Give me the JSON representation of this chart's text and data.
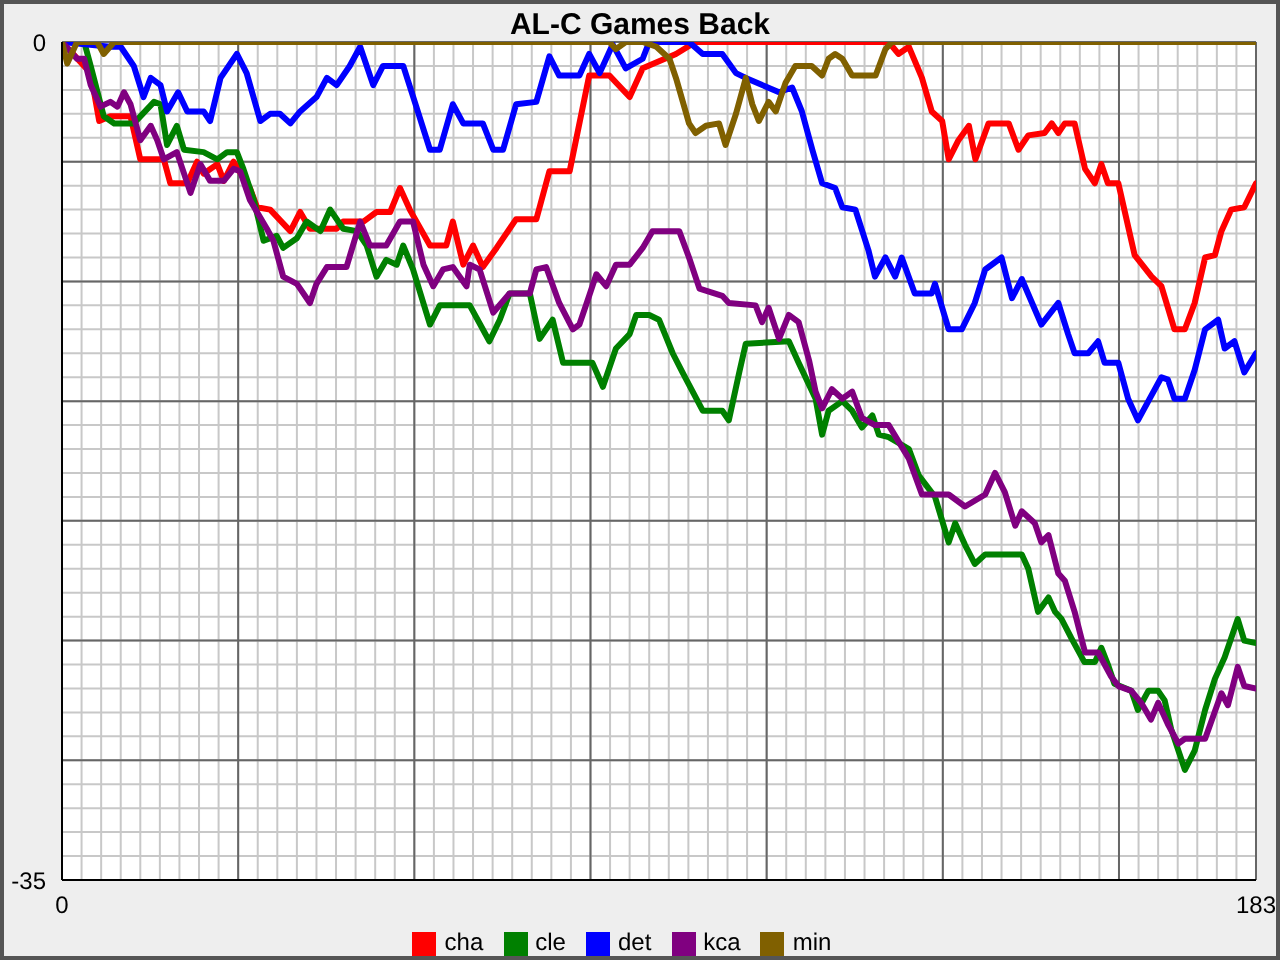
{
  "chart_data": {
    "type": "line",
    "title": "AL-C Games Back",
    "xlim": [
      0,
      183
    ],
    "xticks": [
      0,
      {
        "value": 27,
        "label": null
      },
      {
        "value": 54,
        "label": null
      },
      {
        "value": 81,
        "label": null
      },
      {
        "value": 108,
        "label": null
      },
      {
        "value": 135,
        "label": null
      },
      {
        "value": 162,
        "label": null
      },
      183
    ],
    "ylim": [
      -35,
      0
    ],
    "yticks": [
      -35,
      {
        "value": -30,
        "label": null
      },
      {
        "value": -25,
        "label": null
      },
      {
        "value": -20,
        "label": null
      },
      {
        "value": -15,
        "label": null
      },
      {
        "value": -10,
        "label": null
      },
      {
        "value": -5,
        "label": null
      },
      0
    ],
    "grid": true,
    "legend": "bottom",
    "series": [
      {
        "name": "cha",
        "color": "#ff0000",
        "x": [
          0,
          4.4,
          5.7,
          7.4,
          10.5,
          12.0,
          15.6,
          16.6,
          19.2,
          20.7,
          21.7,
          23.8,
          24.8,
          26.3,
          28.8,
          29.9,
          31.9,
          35.0,
          36.5,
          38.0,
          42.1,
          43.1,
          46.2,
          48.2,
          50.3,
          51.8,
          53.3,
          56.4,
          58.9,
          59.9,
          61.5,
          63.0,
          64.5,
          66.6,
          69.6,
          72.7,
          74.7,
          77.8,
          80.8,
          83.9,
          87.0,
          89.0,
          94.1,
          97.1,
          126.7,
          128.2,
          129.8,
          131.8,
          133.3,
          134.9,
          135.9,
          137.4,
          139.0,
          140.0,
          142.0,
          145.1,
          146.6,
          148.1,
          150.6,
          151.7,
          152.7,
          153.7,
          155.2,
          156.8,
          158.3,
          159.3,
          160.3,
          161.9,
          164.4,
          167.0,
          168.5,
          170.5,
          172.1,
          173.6,
          175.2,
          176.7,
          177.7,
          179.2,
          181.2,
          183
        ],
        "values": [
          0,
          -1.3,
          -3.3,
          -3.1,
          -3.1,
          -4.9,
          -4.9,
          -5.9,
          -5.9,
          -5.0,
          -5.5,
          -5.1,
          -5.8,
          -5.0,
          -6.1,
          -6.9,
          -7.0,
          -7.9,
          -7.1,
          -7.8,
          -7.8,
          -7.5,
          -7.5,
          -7.1,
          -7.1,
          -6.1,
          -7.0,
          -8.5,
          -8.5,
          -7.5,
          -9.3,
          -8.5,
          -9.4,
          -8.6,
          -7.4,
          -7.4,
          -5.4,
          -5.4,
          -1.4,
          -1.4,
          -2.3,
          -1.1,
          -0.5,
          0,
          0,
          -0.5,
          -0.2,
          -1.5,
          -2.9,
          -3.3,
          -4.9,
          -4.1,
          -3.5,
          -4.9,
          -3.4,
          -3.4,
          -4.5,
          -3.9,
          -3.8,
          -3.4,
          -3.8,
          -3.4,
          -3.4,
          -5.3,
          -5.9,
          -5.1,
          -5.9,
          -5.9,
          -8.9,
          -9.8,
          -10.2,
          -12.0,
          -12.0,
          -10.9,
          -9.0,
          -8.9,
          -7.9,
          -7.0,
          -6.9,
          -5.9
        ]
      },
      {
        "name": "cle",
        "color": "#008000",
        "x": [
          0,
          3.4,
          4.4,
          6.4,
          8.0,
          11.0,
          14.1,
          15.1,
          16.1,
          17.6,
          18.7,
          21.7,
          23.8,
          25.3,
          26.8,
          27.8,
          29.4,
          30.9,
          32.9,
          33.9,
          36.0,
          37.5,
          39.6,
          41.1,
          43.1,
          45.2,
          46.7,
          48.2,
          49.7,
          51.3,
          52.3,
          53.8,
          56.4,
          57.9,
          62.5,
          65.5,
          67.1,
          68.6,
          71.7,
          73.2,
          75.2,
          76.8,
          81.3,
          82.9,
          84.9,
          87.0,
          88.0,
          90.0,
          91.5,
          93.6,
          95.1,
          98.2,
          101.2,
          102.2,
          103.8,
          104.8,
          111.4,
          112.9,
          115.5,
          116.5,
          117.5,
          119.6,
          121.1,
          122.6,
          124.2,
          125.2,
          126.7,
          129.8,
          131.3,
          133.8,
          135.9,
          136.9,
          138.4,
          139.9,
          141.5,
          147.1,
          148.1,
          149.6,
          151.2,
          152.2,
          153.2,
          154.7,
          156.7,
          158.3,
          159.3,
          160.3,
          161.3,
          163.9,
          164.9,
          166.5,
          168.0,
          169.0,
          170.0,
          172.1,
          173.6,
          175.2,
          176.7,
          178.2,
          180.2,
          181.2,
          183
        ],
        "values": [
          0,
          0,
          -1.0,
          -3.1,
          -3.4,
          -3.4,
          -2.5,
          -2.6,
          -4.3,
          -3.5,
          -4.5,
          -4.6,
          -4.9,
          -4.6,
          -4.6,
          -5.3,
          -6.6,
          -8.3,
          -8.1,
          -8.6,
          -8.2,
          -7.5,
          -7.9,
          -7.0,
          -7.8,
          -7.9,
          -8.5,
          -9.8,
          -9.1,
          -9.3,
          -8.5,
          -9.5,
          -11.8,
          -11.0,
          -11.0,
          -12.5,
          -11.6,
          -10.5,
          -10.5,
          -12.4,
          -11.6,
          -13.4,
          -13.4,
          -14.4,
          -12.8,
          -12.2,
          -11.4,
          -11.4,
          -11.6,
          -13.0,
          -13.8,
          -15.4,
          -15.4,
          -15.8,
          -13.8,
          -12.6,
          -12.5,
          -13.4,
          -14.9,
          -16.4,
          -15.4,
          -15.0,
          -15.4,
          -16.1,
          -15.6,
          -16.4,
          -16.5,
          -17.0,
          -18.1,
          -19.0,
          -20.9,
          -20.1,
          -21.0,
          -21.8,
          -21.4,
          -21.4,
          -22.0,
          -23.8,
          -23.2,
          -23.8,
          -24.1,
          -24.9,
          -25.9,
          -25.9,
          -25.3,
          -26.0,
          -26.8,
          -27.1,
          -27.9,
          -27.1,
          -27.1,
          -27.5,
          -28.7,
          -30.4,
          -29.6,
          -27.9,
          -26.6,
          -25.7,
          -24.1,
          -25.0,
          -25.1
        ]
      },
      {
        "name": "det",
        "color": "#0000ff",
        "x": [
          0,
          7.4,
          9.0,
          11.0,
          12.5,
          13.6,
          15.1,
          16.1,
          17.8,
          19.2,
          21.7,
          22.7,
          24.3,
          26.8,
          28.3,
          30.4,
          31.9,
          33.4,
          35.0,
          36.5,
          39.0,
          40.6,
          42.1,
          44.1,
          45.7,
          47.7,
          49.2,
          52.3,
          54.3,
          56.4,
          57.9,
          59.9,
          61.5,
          64.5,
          66.1,
          67.6,
          69.6,
          72.7,
          74.7,
          76.2,
          79.3,
          80.8,
          82.4,
          84.4,
          86.4,
          89.0,
          90.0,
          96.1,
          98.2,
          101.2,
          103.3,
          104.8,
          109.9,
          111.9,
          113.4,
          115.0,
          116.5,
          118.5,
          119.6,
          121.6,
          123.6,
          124.6,
          126.2,
          127.7,
          128.7,
          130.7,
          133.3,
          133.8,
          135.9,
          137.9,
          139.9,
          141.5,
          144.0,
          145.6,
          147.1,
          150.1,
          152.7,
          154.2,
          155.2,
          157.3,
          158.8,
          159.8,
          161.9,
          163.4,
          164.9,
          166.5,
          168.5,
          169.5,
          170.5,
          172.1,
          173.6,
          175.2,
          177.2,
          178.2,
          179.7,
          181.2,
          183
        ],
        "values": [
          0,
          -0.2,
          -0.2,
          -1.0,
          -2.3,
          -1.5,
          -1.8,
          -2.9,
          -2.1,
          -2.9,
          -2.9,
          -3.3,
          -1.5,
          -0.5,
          -1.3,
          -3.3,
          -3.0,
          -3.0,
          -3.4,
          -2.9,
          -2.3,
          -1.5,
          -1.8,
          -1.0,
          -0.2,
          -1.8,
          -1.0,
          -1.0,
          -2.7,
          -4.5,
          -4.5,
          -2.6,
          -3.4,
          -3.4,
          -4.5,
          -4.5,
          -2.6,
          -2.5,
          -0.6,
          -1.4,
          -1.4,
          -0.5,
          -1.3,
          -0.1,
          -1.1,
          -0.7,
          0,
          0,
          -0.5,
          -0.5,
          -1.3,
          -1.5,
          -2.1,
          -1.9,
          -2.9,
          -4.5,
          -5.9,
          -6.1,
          -6.9,
          -7.0,
          -8.7,
          -9.8,
          -9.0,
          -9.8,
          -9.0,
          -10.5,
          -10.5,
          -10.1,
          -12.0,
          -12.0,
          -10.9,
          -9.5,
          -9.0,
          -10.7,
          -9.9,
          -11.8,
          -10.9,
          -12.2,
          -13.0,
          -13.0,
          -12.5,
          -13.4,
          -13.4,
          -14.9,
          -15.8,
          -15.0,
          -14.0,
          -14.1,
          -14.9,
          -14.9,
          -13.7,
          -12.0,
          -11.6,
          -12.8,
          -12.5,
          -13.8,
          -13.0
        ]
      },
      {
        "name": "kca",
        "color": "#800080",
        "x": [
          0,
          2.3,
          3.4,
          4.4,
          5.9,
          7.4,
          8.5,
          9.5,
          10.5,
          12.0,
          13.6,
          14.6,
          15.6,
          17.6,
          19.7,
          21.2,
          22.7,
          24.8,
          26.3,
          27.3,
          28.8,
          31.4,
          32.4,
          33.9,
          36.0,
          38.0,
          39.0,
          40.6,
          43.6,
          45.7,
          47.2,
          49.7,
          51.8,
          53.8,
          55.4,
          56.9,
          58.4,
          59.9,
          62.0,
          62.5,
          64.0,
          66.1,
          68.6,
          71.7,
          72.7,
          74.2,
          76.2,
          78.3,
          79.3,
          80.8,
          81.9,
          83.4,
          84.9,
          87.0,
          89.0,
          90.5,
          94.6,
          96.1,
          97.7,
          101.2,
          102.2,
          106.3,
          107.3,
          108.3,
          109.9,
          111.4,
          112.9,
          114.5,
          115.5,
          116.5,
          118.0,
          119.6,
          121.1,
          122.6,
          124.6,
          126.7,
          129.8,
          131.8,
          135.9,
          138.4,
          141.5,
          143.0,
          144.5,
          146.1,
          147.1,
          149.1,
          150.1,
          151.2,
          152.7,
          153.7,
          155.2,
          156.8,
          158.8,
          160.8,
          161.9,
          163.9,
          165.4,
          166.9,
          168.0,
          169.5,
          171.1,
          172.1,
          175.2,
          177.7,
          178.7,
          180.2,
          181.2,
          183
        ],
        "values": [
          0,
          -0.7,
          -0.7,
          -1.8,
          -2.7,
          -2.5,
          -2.7,
          -2.1,
          -2.6,
          -4.1,
          -3.5,
          -4.1,
          -4.9,
          -4.6,
          -6.3,
          -5.1,
          -5.8,
          -5.8,
          -5.3,
          -5.4,
          -6.6,
          -7.8,
          -8.3,
          -9.8,
          -10.1,
          -10.9,
          -10.1,
          -9.4,
          -9.4,
          -7.5,
          -8.5,
          -8.5,
          -7.5,
          -7.5,
          -9.3,
          -10.2,
          -9.5,
          -9.4,
          -10.2,
          -9.3,
          -9.5,
          -11.3,
          -10.5,
          -10.5,
          -9.5,
          -9.4,
          -10.9,
          -12.0,
          -11.8,
          -10.6,
          -9.7,
          -10.2,
          -9.3,
          -9.3,
          -8.6,
          -7.9,
          -7.9,
          -9.0,
          -10.3,
          -10.6,
          -10.9,
          -11.0,
          -11.7,
          -11.1,
          -12.4,
          -11.4,
          -11.7,
          -13.3,
          -14.6,
          -15.3,
          -14.5,
          -14.9,
          -14.6,
          -15.7,
          -16.0,
          -16.0,
          -17.4,
          -18.9,
          -18.9,
          -19.4,
          -18.9,
          -18.0,
          -18.8,
          -20.2,
          -19.6,
          -20.1,
          -20.9,
          -20.6,
          -22.2,
          -22.5,
          -23.8,
          -25.5,
          -25.5,
          -26.5,
          -26.9,
          -27.1,
          -27.6,
          -28.3,
          -27.6,
          -28.5,
          -29.3,
          -29.1,
          -29.1,
          -27.2,
          -27.7,
          -26.1,
          -26.9,
          -27.0
        ]
      },
      {
        "name": "min",
        "color": "#806000",
        "x": [
          0,
          0.8,
          2.3,
          5.4,
          6.4,
          8.0,
          83.9,
          84.9,
          86.4,
          89.0,
          91.1,
          93.1,
          94.1,
          96.1,
          97.1,
          98.7,
          100.7,
          101.7,
          103.3,
          104.8,
          105.8,
          106.8,
          108.3,
          109.4,
          110.9,
          112.4,
          114.9,
          116.5,
          117.5,
          118.5,
          119.6,
          121.1,
          124.7,
          126.2,
          127.2,
          183
        ],
        "values": [
          0,
          -0.9,
          0,
          0,
          -0.5,
          0,
          0,
          -0.3,
          0,
          0,
          -0.2,
          -0.7,
          -1.5,
          -3.4,
          -3.8,
          -3.5,
          -3.4,
          -4.3,
          -3.0,
          -1.5,
          -2.6,
          -3.3,
          -2.5,
          -2.9,
          -1.7,
          -1.0,
          -1.0,
          -1.4,
          -0.7,
          -0.5,
          -0.7,
          -1.4,
          -1.4,
          -0.3,
          0,
          0
        ]
      }
    ]
  }
}
